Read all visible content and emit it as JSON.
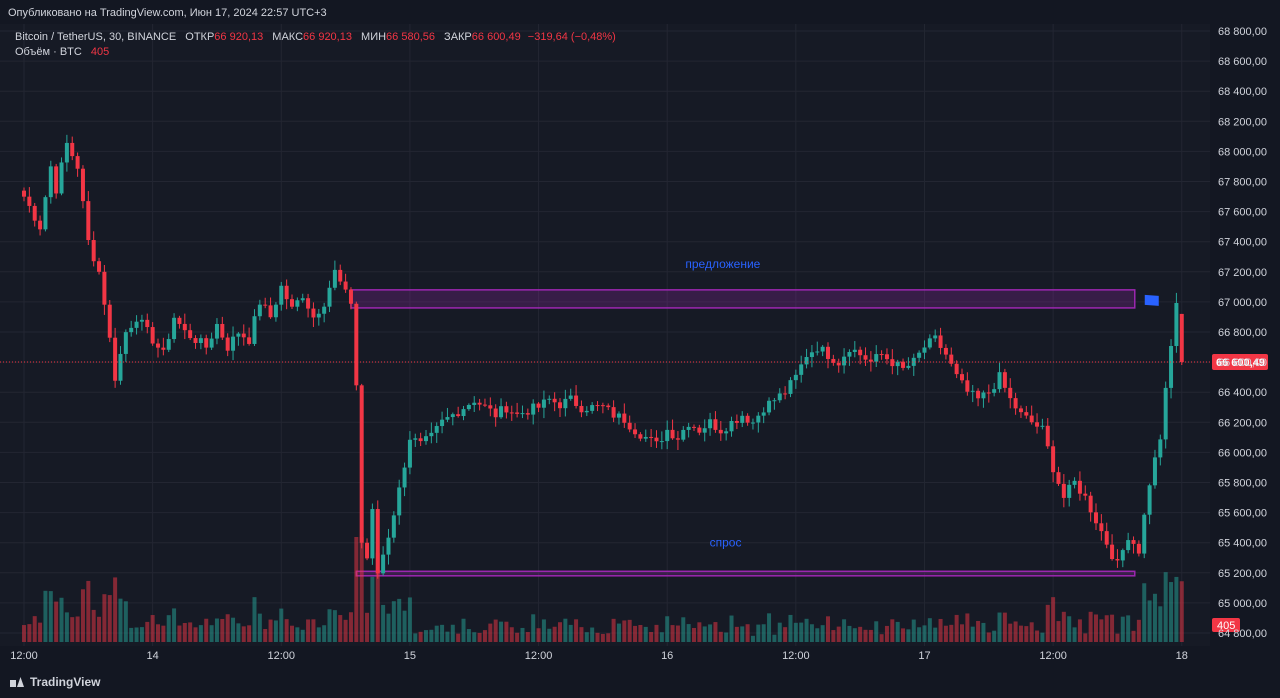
{
  "published": "Опубликовано на TradingView.com, Июн 17, 2024 22:57 UTC+3",
  "legend": {
    "symbol": "Bitcoin / TetherUS, 30, BINANCE",
    "open_label": "ОТКР",
    "open": "66 920,13",
    "high_label": "МАКС",
    "high": "66 920,13",
    "low_label": "МИН",
    "low": "66 580,56",
    "close_label": "ЗАКР",
    "close": "66 600,49",
    "change": "−319,64 (−0,48%)",
    "volume_label": "Объём · BTC",
    "volume": "405"
  },
  "footer": {
    "brand": "TradingView"
  },
  "colors": {
    "up": "#26a69a",
    "down": "#f23645",
    "zone": "#9c27b0",
    "zone_label": "#2962ff",
    "flag": "#2962ff"
  },
  "chart_data": {
    "type": "candlestick",
    "symbol": "BTCUSDT",
    "interval": "30",
    "ylim": [
      64700,
      68900
    ],
    "y_ticks": [
      "68 800,00",
      "68 600,00",
      "68 400,00",
      "68 200,00",
      "68 000,00",
      "67 800,00",
      "67 600,00",
      "67 400,00",
      "67 200,00",
      "67 000,00",
      "66 800,00",
      "66 600,00",
      "66 400,00",
      "66 200,00",
      "66 000,00",
      "65 800,00",
      "65 600,00",
      "65 400,00",
      "65 200,00",
      "65 000,00",
      "64 800,00"
    ],
    "y_tick_values": [
      68800,
      68600,
      68400,
      68200,
      68000,
      67800,
      67600,
      67400,
      67200,
      67000,
      66800,
      66600,
      66400,
      66200,
      66000,
      65800,
      65600,
      65400,
      65200,
      65000,
      64800
    ],
    "x_ticks": [
      {
        "label": "12:00",
        "index": 0
      },
      {
        "label": "14",
        "index": 24
      },
      {
        "label": "12:00",
        "index": 48
      },
      {
        "label": "15",
        "index": 72
      },
      {
        "label": "12:00",
        "index": 96
      },
      {
        "label": "16",
        "index": 120
      },
      {
        "label": "12:00",
        "index": 144
      },
      {
        "label": "17",
        "index": 168
      },
      {
        "label": "12:00",
        "index": 192
      },
      {
        "label": "18",
        "index": 216
      }
    ],
    "last_price": 66600.49,
    "last_price_label": "66 600,49",
    "last_volume": 405,
    "last_volume_label": "405",
    "zones": [
      {
        "label": "предложение",
        "start_index": 61,
        "end_index": 216,
        "low": 66960,
        "high": 67080
      },
      {
        "label": "спрос",
        "start_index": 62,
        "end_index": 216,
        "low": 65180,
        "high": 65210
      }
    ],
    "keypoints": [
      [
        0,
        67700
      ],
      [
        3,
        67500
      ],
      [
        5,
        67900
      ],
      [
        6,
        67750
      ],
      [
        8,
        68050
      ],
      [
        10,
        67900
      ],
      [
        12,
        67400
      ],
      [
        14,
        67200
      ],
      [
        15,
        67000
      ],
      [
        17,
        66500
      ],
      [
        19,
        66800
      ],
      [
        21,
        66900
      ],
      [
        24,
        66750
      ],
      [
        26,
        66650
      ],
      [
        28,
        66900
      ],
      [
        30,
        66800
      ],
      [
        32,
        66750
      ],
      [
        34,
        66700
      ],
      [
        36,
        66850
      ],
      [
        38,
        66700
      ],
      [
        40,
        66800
      ],
      [
        42,
        66750
      ],
      [
        44,
        67000
      ],
      [
        46,
        66900
      ],
      [
        48,
        67100
      ],
      [
        50,
        66950
      ],
      [
        52,
        67050
      ],
      [
        54,
        66900
      ],
      [
        56,
        67000
      ],
      [
        58,
        67200
      ],
      [
        60,
        67050
      ],
      [
        61,
        67000
      ],
      [
        62,
        66450
      ],
      [
        63,
        65400
      ],
      [
        64,
        65300
      ],
      [
        65,
        65600
      ],
      [
        66,
        65200
      ],
      [
        68,
        65450
      ],
      [
        70,
        65750
      ],
      [
        72,
        66100
      ],
      [
        74,
        66050
      ],
      [
        76,
        66100
      ],
      [
        78,
        66200
      ],
      [
        80,
        66250
      ],
      [
        82,
        66300
      ],
      [
        84,
        66350
      ],
      [
        86,
        66300
      ],
      [
        88,
        66250
      ],
      [
        90,
        66300
      ],
      [
        92,
        66250
      ],
      [
        94,
        66280
      ],
      [
        96,
        66300
      ],
      [
        98,
        66350
      ],
      [
        100,
        66320
      ],
      [
        102,
        66350
      ],
      [
        104,
        66300
      ],
      [
        106,
        66300
      ],
      [
        108,
        66300
      ],
      [
        110,
        66250
      ],
      [
        112,
        66220
      ],
      [
        114,
        66150
      ],
      [
        116,
        66100
      ],
      [
        118,
        66050
      ],
      [
        120,
        66150
      ],
      [
        122,
        66100
      ],
      [
        124,
        66200
      ],
      [
        126,
        66150
      ],
      [
        128,
        66200
      ],
      [
        130,
        66150
      ],
      [
        132,
        66200
      ],
      [
        134,
        66250
      ],
      [
        136,
        66200
      ],
      [
        138,
        66300
      ],
      [
        140,
        66350
      ],
      [
        142,
        66400
      ],
      [
        144,
        66500
      ],
      [
        146,
        66650
      ],
      [
        148,
        66700
      ],
      [
        150,
        66650
      ],
      [
        152,
        66600
      ],
      [
        154,
        66700
      ],
      [
        156,
        66650
      ],
      [
        158,
        66600
      ],
      [
        160,
        66650
      ],
      [
        162,
        66600
      ],
      [
        164,
        66550
      ],
      [
        166,
        66600
      ],
      [
        168,
        66700
      ],
      [
        170,
        66750
      ],
      [
        172,
        66650
      ],
      [
        174,
        66500
      ],
      [
        176,
        66400
      ],
      [
        178,
        66350
      ],
      [
        180,
        66400
      ],
      [
        182,
        66500
      ],
      [
        184,
        66350
      ],
      [
        186,
        66250
      ],
      [
        188,
        66200
      ],
      [
        190,
        66150
      ],
      [
        192,
        65900
      ],
      [
        194,
        65700
      ],
      [
        196,
        65800
      ],
      [
        198,
        65700
      ],
      [
        200,
        65550
      ],
      [
        202,
        65400
      ],
      [
        204,
        65250
      ],
      [
        206,
        65450
      ],
      [
        208,
        65350
      ],
      [
        210,
        65800
      ],
      [
        212,
        66100
      ],
      [
        214,
        66700
      ],
      [
        215,
        67000
      ],
      [
        216,
        66600
      ]
    ],
    "volume_range": [
      0,
      700
    ]
  }
}
